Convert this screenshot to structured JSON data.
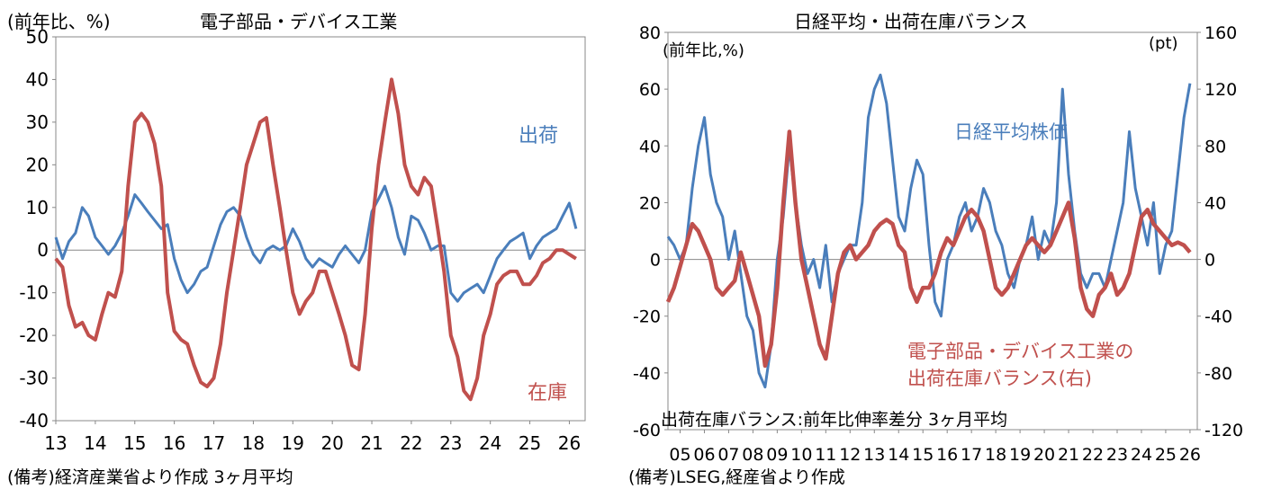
{
  "left": {
    "unit_label": "(前年比、%)",
    "title": "電子部品・デバイス工業",
    "footnote": "(備考)経済産業省より作成 3ヶ月平均",
    "chart_data": {
      "type": "line",
      "title": "電子部品・デバイス工業",
      "ylim": [
        -40,
        50
      ],
      "yticks": [
        -40,
        -30,
        -20,
        -10,
        0,
        10,
        20,
        30,
        40,
        50
      ],
      "xlim": [
        2013.0,
        2026.4
      ],
      "xtick_labels": [
        "13",
        "14",
        "15",
        "16",
        "17",
        "18",
        "19",
        "20",
        "21",
        "22",
        "23",
        "24",
        "25",
        "26"
      ],
      "grid": false,
      "series": [
        {
          "name": "出荷",
          "color": "#4a7ebb",
          "x": [
            2013.0,
            2013.17,
            2013.33,
            2013.5,
            2013.67,
            2013.83,
            2014.0,
            2014.17,
            2014.33,
            2014.5,
            2014.67,
            2014.83,
            2015.0,
            2015.17,
            2015.33,
            2015.5,
            2015.67,
            2015.83,
            2016.0,
            2016.17,
            2016.33,
            2016.5,
            2016.67,
            2016.83,
            2017.0,
            2017.17,
            2017.33,
            2017.5,
            2017.67,
            2017.83,
            2018.0,
            2018.17,
            2018.33,
            2018.5,
            2018.67,
            2018.83,
            2019.0,
            2019.17,
            2019.33,
            2019.5,
            2019.67,
            2019.83,
            2020.0,
            2020.17,
            2020.33,
            2020.5,
            2020.67,
            2020.83,
            2021.0,
            2021.17,
            2021.33,
            2021.5,
            2021.67,
            2021.83,
            2022.0,
            2022.17,
            2022.33,
            2022.5,
            2022.67,
            2022.83,
            2023.0,
            2023.17,
            2023.33,
            2023.5,
            2023.67,
            2023.83,
            2024.0,
            2024.17,
            2024.33,
            2024.5,
            2024.67,
            2024.83,
            2025.0,
            2025.17,
            2025.33,
            2025.5,
            2025.67,
            2025.83,
            2026.0,
            2026.17
          ],
          "values": [
            3,
            -2,
            2,
            4,
            10,
            8,
            3,
            1,
            -1,
            1,
            4,
            8,
            13,
            11,
            9,
            7,
            5,
            6,
            -2,
            -7,
            -10,
            -8,
            -5,
            -4,
            1,
            6,
            9,
            10,
            8,
            3,
            -1,
            -3,
            0,
            1,
            0,
            1,
            5,
            2,
            -2,
            -4,
            -2,
            -3,
            -4,
            -1,
            1,
            -1,
            -3,
            0,
            9,
            12,
            15,
            10,
            3,
            -1,
            8,
            7,
            4,
            0,
            1,
            1,
            -10,
            -12,
            -10,
            -9,
            -8,
            -10,
            -6,
            -2,
            0,
            2,
            3,
            4,
            -2,
            1,
            3,
            4,
            5,
            8,
            11,
            5
          ]
        },
        {
          "name": "在庫",
          "color": "#c0504d",
          "x": [
            2013.0,
            2013.17,
            2013.33,
            2013.5,
            2013.67,
            2013.83,
            2014.0,
            2014.17,
            2014.33,
            2014.5,
            2014.67,
            2014.83,
            2015.0,
            2015.17,
            2015.33,
            2015.5,
            2015.67,
            2015.83,
            2016.0,
            2016.17,
            2016.33,
            2016.5,
            2016.67,
            2016.83,
            2017.0,
            2017.17,
            2017.33,
            2017.5,
            2017.67,
            2017.83,
            2018.0,
            2018.17,
            2018.33,
            2018.5,
            2018.67,
            2018.83,
            2019.0,
            2019.17,
            2019.33,
            2019.5,
            2019.67,
            2019.83,
            2020.0,
            2020.17,
            2020.33,
            2020.5,
            2020.67,
            2020.83,
            2021.0,
            2021.17,
            2021.33,
            2021.5,
            2021.67,
            2021.83,
            2022.0,
            2022.17,
            2022.33,
            2022.5,
            2022.67,
            2022.83,
            2023.0,
            2023.17,
            2023.33,
            2023.5,
            2023.67,
            2023.83,
            2024.0,
            2024.17,
            2024.33,
            2024.5,
            2024.67,
            2024.83,
            2025.0,
            2025.17,
            2025.33,
            2025.5,
            2025.67,
            2025.83,
            2026.0,
            2026.17
          ],
          "values": [
            -2,
            -4,
            -13,
            -18,
            -17,
            -20,
            -21,
            -15,
            -10,
            -11,
            -5,
            15,
            30,
            32,
            30,
            25,
            15,
            -10,
            -19,
            -21,
            -22,
            -27,
            -31,
            -32,
            -30,
            -22,
            -10,
            0,
            10,
            20,
            25,
            30,
            31,
            20,
            10,
            0,
            -10,
            -15,
            -12,
            -10,
            -5,
            -5,
            -10,
            -15,
            -20,
            -27,
            -28,
            -15,
            5,
            20,
            30,
            40,
            32,
            20,
            15,
            13,
            17,
            15,
            5,
            -5,
            -20,
            -25,
            -33,
            -35,
            -30,
            -20,
            -15,
            -8,
            -6,
            -5,
            -5,
            -8,
            -8,
            -6,
            -3,
            -2,
            0,
            0,
            -1,
            -2
          ]
        }
      ],
      "annotations": [
        "出荷",
        "在庫"
      ]
    }
  },
  "right": {
    "title": "日経平均・出荷在庫バランス",
    "left_unit": "(前年比,%)",
    "right_unit": "(pt)",
    "note": "出荷在庫バランス:前年比伸率差分 3ヶ月平均",
    "footnote": "(備考)LSEG,経産省より作成",
    "chart_data": {
      "type": "line",
      "title": "日経平均・出荷在庫バランス",
      "ylim": [
        -60,
        80
      ],
      "yticks": [
        -60,
        -40,
        -20,
        0,
        20,
        40,
        60,
        80
      ],
      "y2lim": [
        -120,
        160
      ],
      "y2ticks": [
        -120,
        -80,
        -40,
        0,
        40,
        80,
        120,
        160
      ],
      "xlim": [
        2005.0,
        2026.8
      ],
      "xtick_labels": [
        "05",
        "06",
        "07",
        "08",
        "09",
        "10",
        "11",
        "12",
        "13",
        "14",
        "15",
        "16",
        "17",
        "18",
        "19",
        "20",
        "21",
        "22",
        "23",
        "24",
        "25",
        "26"
      ],
      "grid": false,
      "series": [
        {
          "name": "日経平均株価",
          "axis": "left",
          "color": "#4a7ebb",
          "x": [
            2005.0,
            2005.25,
            2005.5,
            2005.75,
            2006.0,
            2006.25,
            2006.5,
            2006.75,
            2007.0,
            2007.25,
            2007.5,
            2007.75,
            2008.0,
            2008.25,
            2008.5,
            2008.75,
            2009.0,
            2009.25,
            2009.5,
            2009.75,
            2010.0,
            2010.25,
            2010.5,
            2010.75,
            2011.0,
            2011.25,
            2011.5,
            2011.75,
            2012.0,
            2012.25,
            2012.5,
            2012.75,
            2013.0,
            2013.25,
            2013.5,
            2013.75,
            2014.0,
            2014.25,
            2014.5,
            2014.75,
            2015.0,
            2015.25,
            2015.5,
            2015.75,
            2016.0,
            2016.25,
            2016.5,
            2016.75,
            2017.0,
            2017.25,
            2017.5,
            2017.75,
            2018.0,
            2018.25,
            2018.5,
            2018.75,
            2019.0,
            2019.25,
            2019.5,
            2019.75,
            2020.0,
            2020.25,
            2020.5,
            2020.75,
            2021.0,
            2021.25,
            2021.5,
            2021.75,
            2022.0,
            2022.25,
            2022.5,
            2022.75,
            2023.0,
            2023.25,
            2023.5,
            2023.75,
            2024.0,
            2024.25,
            2024.5,
            2024.75,
            2025.0,
            2025.25,
            2025.5,
            2025.75,
            2026.0,
            2026.25,
            2026.5
          ],
          "values": [
            8,
            5,
            0,
            5,
            25,
            40,
            50,
            30,
            20,
            15,
            0,
            10,
            -5,
            -20,
            -25,
            -40,
            -45,
            -30,
            0,
            15,
            40,
            20,
            5,
            -5,
            0,
            -10,
            5,
            -15,
            -5,
            0,
            5,
            5,
            20,
            50,
            60,
            65,
            55,
            35,
            15,
            10,
            25,
            35,
            30,
            5,
            -15,
            -20,
            0,
            5,
            15,
            20,
            10,
            15,
            25,
            20,
            10,
            5,
            -5,
            -10,
            0,
            5,
            15,
            0,
            10,
            5,
            20,
            60,
            30,
            10,
            -5,
            -10,
            -5,
            -5,
            -10,
            0,
            10,
            20,
            45,
            25,
            15,
            5,
            20,
            -5,
            5,
            10,
            30,
            50,
            62
          ]
        },
        {
          "name": "電子部品・デバイス工業の出荷在庫バランス(右)",
          "axis": "right",
          "color": "#c0504d",
          "x": [
            2005.0,
            2005.25,
            2005.5,
            2005.75,
            2006.0,
            2006.25,
            2006.5,
            2006.75,
            2007.0,
            2007.25,
            2007.5,
            2007.75,
            2008.0,
            2008.25,
            2008.5,
            2008.75,
            2009.0,
            2009.25,
            2009.5,
            2009.75,
            2010.0,
            2010.25,
            2010.5,
            2010.75,
            2011.0,
            2011.25,
            2011.5,
            2011.75,
            2012.0,
            2012.25,
            2012.5,
            2012.75,
            2013.0,
            2013.25,
            2013.5,
            2013.75,
            2014.0,
            2014.25,
            2014.5,
            2014.75,
            2015.0,
            2015.25,
            2015.5,
            2015.75,
            2016.0,
            2016.25,
            2016.5,
            2016.75,
            2017.0,
            2017.25,
            2017.5,
            2017.75,
            2018.0,
            2018.25,
            2018.5,
            2018.75,
            2019.0,
            2019.25,
            2019.5,
            2019.75,
            2020.0,
            2020.25,
            2020.5,
            2020.75,
            2021.0,
            2021.25,
            2021.5,
            2021.75,
            2022.0,
            2022.25,
            2022.5,
            2022.75,
            2023.0,
            2023.25,
            2023.5,
            2023.75,
            2024.0,
            2024.25,
            2024.5,
            2024.75,
            2025.0,
            2025.25,
            2025.5,
            2025.75,
            2026.0,
            2026.25,
            2026.5
          ],
          "values": [
            -30,
            -20,
            -5,
            10,
            25,
            20,
            10,
            0,
            -20,
            -25,
            -20,
            -15,
            5,
            -10,
            -25,
            -40,
            -75,
            -60,
            -20,
            40,
            90,
            40,
            0,
            -20,
            -40,
            -60,
            -70,
            -40,
            -10,
            5,
            10,
            0,
            5,
            10,
            20,
            25,
            28,
            25,
            10,
            5,
            -20,
            -30,
            -20,
            -20,
            -10,
            5,
            15,
            10,
            20,
            30,
            35,
            30,
            20,
            0,
            -20,
            -25,
            -20,
            -10,
            0,
            10,
            15,
            10,
            5,
            10,
            20,
            30,
            40,
            15,
            -20,
            -35,
            -40,
            -25,
            -20,
            -10,
            -25,
            -20,
            -10,
            10,
            30,
            35,
            25,
            20,
            15,
            10,
            12,
            10,
            5
          ]
        }
      ],
      "annotations": [
        "日経平均株価",
        "電子部品・デバイス工業の",
        "出荷在庫バランス(右)"
      ]
    }
  }
}
